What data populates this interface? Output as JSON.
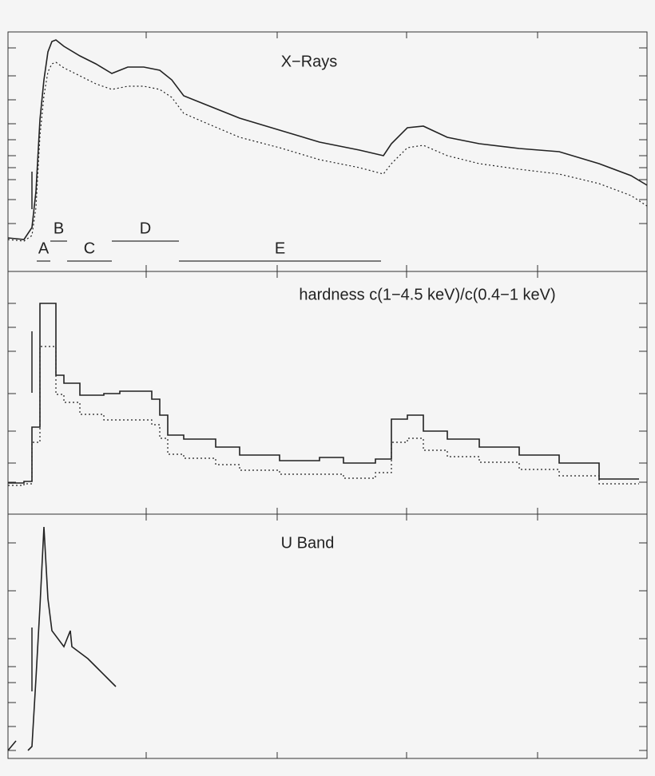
{
  "chart_data": [
    {
      "type": "line",
      "title": "X−Rays",
      "x": [
        0,
        20,
        30,
        35,
        40,
        45,
        50,
        55,
        60,
        70,
        90,
        110,
        130,
        140,
        150,
        170,
        190,
        205,
        220,
        250,
        290,
        340,
        390,
        440,
        470,
        480,
        500,
        520,
        550,
        590,
        640,
        690,
        740,
        780,
        800
      ],
      "series": [
        {
          "color": "#222222",
          "dash": "solid",
          "values": [
            42,
            40,
            55,
            100,
            190,
            240,
            275,
            288,
            290,
            282,
            270,
            260,
            248,
            252,
            256,
            256,
            252,
            240,
            220,
            208,
            192,
            177,
            162,
            152,
            145,
            160,
            180,
            182,
            168,
            160,
            154,
            150,
            135,
            120,
            108
          ]
        },
        {
          "color": "#222222",
          "dash": "dotted",
          "values": [
            40,
            38,
            45,
            80,
            170,
            220,
            250,
            260,
            262,
            255,
            245,
            235,
            228,
            230,
            232,
            232,
            228,
            218,
            198,
            185,
            168,
            155,
            140,
            130,
            122,
            135,
            155,
            158,
            145,
            135,
            128,
            122,
            110,
            95,
            82
          ]
        }
      ],
      "xlim": [
        0,
        800
      ],
      "ylim": [
        0,
        300
      ],
      "xticks": [
        173,
        337,
        499,
        663
      ],
      "yticks": [
        280,
        245,
        215,
        185,
        165,
        145,
        130,
        115,
        90,
        60
      ],
      "intervals": [
        {
          "label": "A",
          "range": [
            36,
            53
          ]
        },
        {
          "label": "B",
          "range": [
            53,
            74
          ]
        },
        {
          "label": "C",
          "range": [
            74,
            130
          ]
        },
        {
          "label": "D",
          "range": [
            130,
            214
          ]
        },
        {
          "label": "E",
          "range": [
            214,
            467
          ]
        }
      ]
    },
    {
      "type": "step",
      "title": "hardness c(1−4.5 keV)/c(0.4−1 keV)",
      "x": [
        0,
        20,
        30,
        40,
        50,
        60,
        70,
        90,
        120,
        140,
        160,
        180,
        190,
        200,
        220,
        260,
        290,
        340,
        390,
        420,
        460,
        480,
        500,
        520,
        550,
        590,
        640,
        690,
        740,
        790
      ],
      "series": [
        {
          "color": "#222222",
          "dash": "solid",
          "values": [
            39,
            41,
            109,
            264,
            264,
            174,
            164,
            149,
            151,
            154,
            154,
            144,
            124,
            99,
            94,
            84,
            74,
            67,
            71,
            64,
            69,
            119,
            124,
            104,
            94,
            84,
            74,
            64,
            44,
            44
          ]
        },
        {
          "color": "#222222",
          "dash": "dotted",
          "values": [
            36,
            38,
            90,
            210,
            210,
            150,
            140,
            125,
            118,
            118,
            118,
            112,
            95,
            75,
            70,
            62,
            55,
            50,
            50,
            45,
            52,
            90,
            95,
            80,
            72,
            65,
            56,
            48,
            38,
            38
          ]
        }
      ],
      "xlim": [
        0,
        800
      ],
      "ylim": [
        0,
        304
      ],
      "xticks": [
        173,
        337,
        499,
        663
      ],
      "yticks": [
        264,
        234,
        204,
        151,
        104,
        64,
        40
      ]
    },
    {
      "type": "line",
      "title": "U Band",
      "x": [
        0,
        10,
        17,
        25,
        30,
        35,
        40,
        45,
        50,
        55,
        70,
        78,
        80,
        100,
        110,
        130,
        135
      ],
      "series": [
        {
          "color": "#222222",
          "dash": "solid",
          "values": [
            10,
            22,
            null,
            10,
            15,
            100,
            190,
            290,
            200,
            160,
            140,
            160,
            140,
            125,
            115,
            95,
            90
          ]
        }
      ],
      "xlim": [
        0,
        800
      ],
      "ylim": [
        0,
        306
      ],
      "xticks": [
        173,
        337,
        499,
        663
      ],
      "yticks": [
        270,
        210,
        150,
        115,
        95,
        70,
        40,
        10
      ]
    }
  ]
}
